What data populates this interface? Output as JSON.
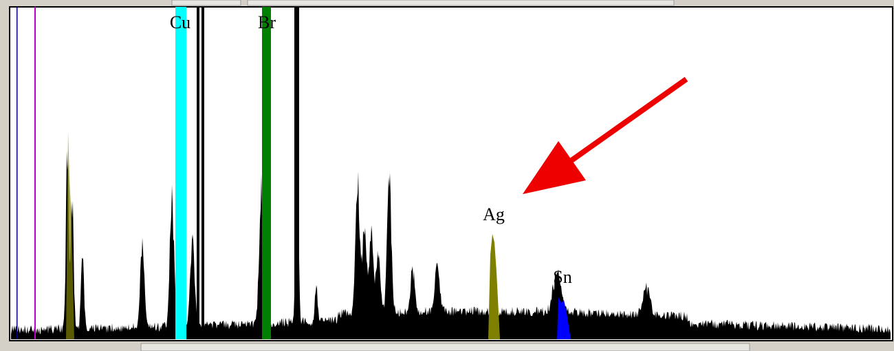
{
  "peaks": [
    "Cu",
    "Br",
    "Ag",
    "Sn"
  ]
}
